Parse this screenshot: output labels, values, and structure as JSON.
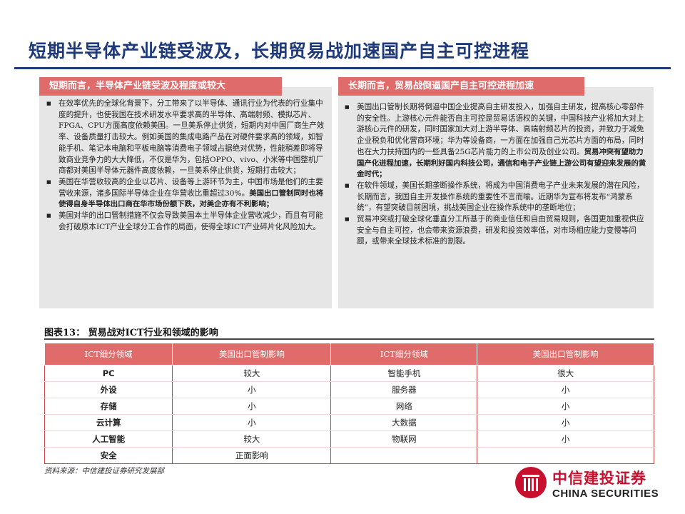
{
  "title": "短期半导体产业链受波及，长期贸易战加速国产自主可控进程",
  "left_panel": {
    "heading": "短期而言，半导体产业链受波及程度或较大",
    "bullets": [
      {
        "text": "在效率优先的全球化背景下，分工带来了以半导体、通讯行业为代表的行业集中度的提升，也使我国在技术研发水平要求高的半导体、高端射频、模拟芯片、FPGA、CPU方面高度依赖美国。一旦美系停止供货，短期内对中国厂商生产效率、设备质量打击较大。例如美国的集成电路产品在对硬件要求高的领域，如智能手机、笔记本电脑和平板电脑等消费电子领域占据绝对优势，性能稍差即将导致商业竞争力的大大降低，不仅是华为，包括OPPO、vivo、小米等中国整机厂商都对美国半导体元器件高度依赖，一旦美系停止供货，短期打击较大；",
        "strong": ""
      },
      {
        "text": "美国在华营收较高的企业以芯片、设备等上游环节为主，中国市场是他们的主要营收来源，诸多国际半导体企业在华营收比重超过30%。",
        "strong": "美国出口管制同时也将使得自身半导体出口商在华市场份额下跌，对美企亦有不利影响；"
      },
      {
        "text": "美国对华的出口管制措施不仅会导致美国本土半导体企业营收减少，而且有可能会打破原本ICT产业全球分工合作的局面，使得全球ICT产业碎片化风险加大。",
        "strong": ""
      }
    ]
  },
  "right_panel": {
    "heading": "长期而言，贸易战倒逼国产自主可控进程加速",
    "bullets": [
      {
        "text": "美国出口管制长期将倒逼中国企业提高自主研发投入，加强自主研发，提高核心零部件的安全性。上游核心元件能否自主可控是贸易话语权的关键，中国科技产业将加大对上游核心元件的研发，同时国家加大对上游半导体、高端射频芯片的投资，并致力于减免企业税负和优化营商环境；华为等设备商，一方面在加强自己光芯片方面的布局，同时也在大力扶持国内的一些具备25G芯片能力的上市公司及创业公司。",
        "strong": "贸易冲突有望助力国产化进程加速，长期利好国内科技公司，通信和电子产业链上游公司有望迎来发展的黄金时代；"
      },
      {
        "text": "在软件领域，美国长期垄断操作系统，将成为中国消费电子产业未来发展的潜在风险，长期而言，我国自主开发操作系统的重要性不言而喻。近期华为宣布将发布“鸿蒙系统”，有望突破目前困境，挑战美国企业在操作系统中的垄断地位；",
        "strong": ""
      },
      {
        "text": "贸易冲突或打破全球化垂直分工所基于的商业信任和自由贸易规则，各国更加重视供应安全与自主可控，也会带来资源浪费，研发和投资效率低，对市场相应能力变慢等问题，或带来全球技术标准的割裂。",
        "strong": ""
      }
    ]
  },
  "figure": {
    "caption": "图表13：  贸易战对ICT行业和领域的影响",
    "headers": [
      "ICT细分领域",
      "美国出口管制影响",
      "ICT细分领域",
      "美国出口管制影响"
    ],
    "rows": [
      [
        "PC",
        "较大",
        "智能手机",
        "很大"
      ],
      [
        "外设",
        "小",
        "服务器",
        "小"
      ],
      [
        "存储",
        "小",
        "网络",
        "小"
      ],
      [
        "云计算",
        "小",
        "大数据",
        "小"
      ],
      [
        "人工智能",
        "较大",
        "物联网",
        "小"
      ],
      [
        "安全",
        "正面影响",
        "",
        ""
      ]
    ]
  },
  "source": "资料来源：中信建投证券研究发展部",
  "logo": {
    "cn": "中信建投证券",
    "en": "CHINA SECURITIES",
    "brand_color": "#c8102e"
  },
  "colors": {
    "title": "#1f3a7a",
    "accent": "#e06b6b",
    "panel_bg": "#e6e6e6"
  }
}
